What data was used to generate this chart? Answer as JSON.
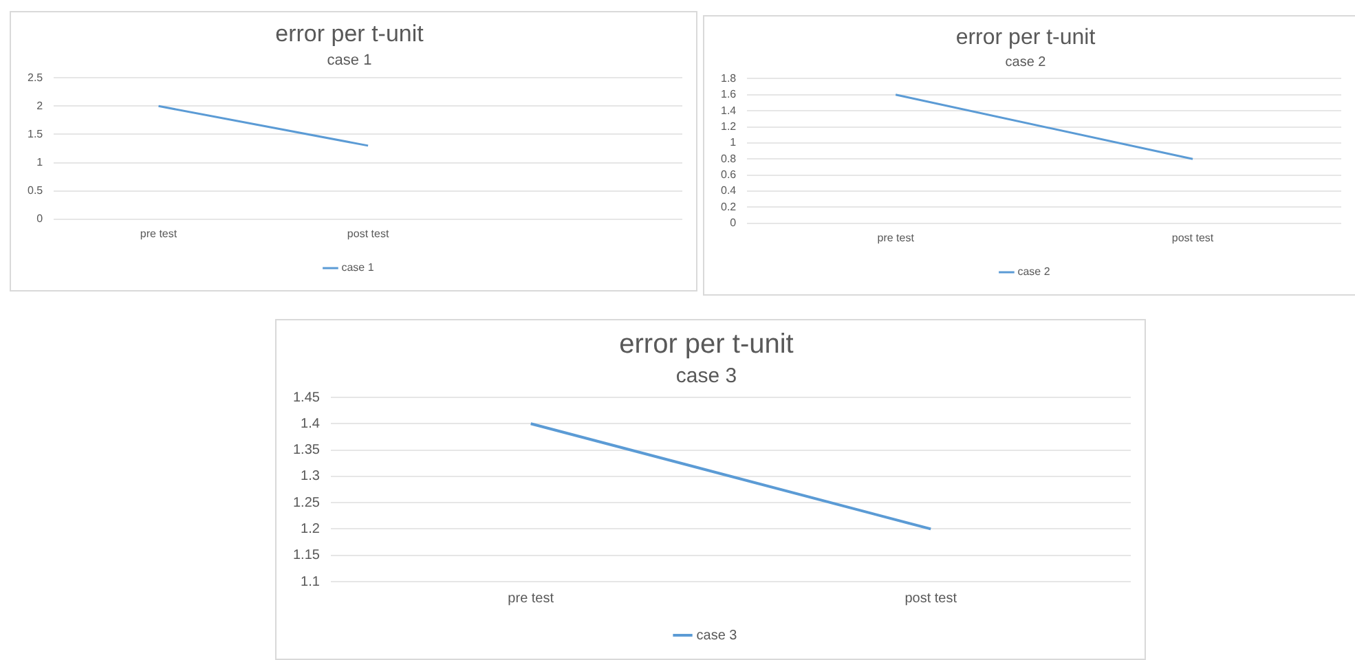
{
  "chart_data": [
    {
      "type": "line",
      "title": "error per t-unit",
      "subtitle": "case 1",
      "categories": [
        "pre test",
        "post test",
        null
      ],
      "series": [
        {
          "name": "case 1",
          "color": "#5b9bd5",
          "values": [
            2,
            1.3,
            null
          ]
        }
      ],
      "ylim": [
        0,
        2.5
      ],
      "yticks": [
        0,
        0.5,
        1,
        1.5,
        2,
        2.5
      ],
      "grid": "y",
      "legend": "bottom",
      "marker": "none"
    },
    {
      "type": "line",
      "title": "error per t-unit",
      "subtitle": "case 2",
      "categories": [
        "pre test",
        "post test"
      ],
      "series": [
        {
          "name": "case 2",
          "color": "#5b9bd5",
          "values": [
            1.6,
            0.8
          ]
        }
      ],
      "ylim": [
        0,
        1.8
      ],
      "yticks": [
        0,
        0.2,
        0.4,
        0.6,
        0.8,
        1,
        1.2,
        1.4,
        1.6,
        1.8
      ],
      "grid": "y",
      "legend": "bottom",
      "marker": "none"
    },
    {
      "type": "line",
      "title": "error per t-unit",
      "subtitle": "case 3",
      "categories": [
        "pre test",
        "post test"
      ],
      "series": [
        {
          "name": "case 3",
          "color": "#5b9bd5",
          "values": [
            1.4,
            1.2
          ]
        }
      ],
      "ylim": [
        1.1,
        1.45
      ],
      "yticks": [
        1.1,
        1.15,
        1.2,
        1.25,
        1.3,
        1.35,
        1.4,
        1.45
      ],
      "grid": "y",
      "legend": "bottom",
      "marker": "none"
    }
  ]
}
